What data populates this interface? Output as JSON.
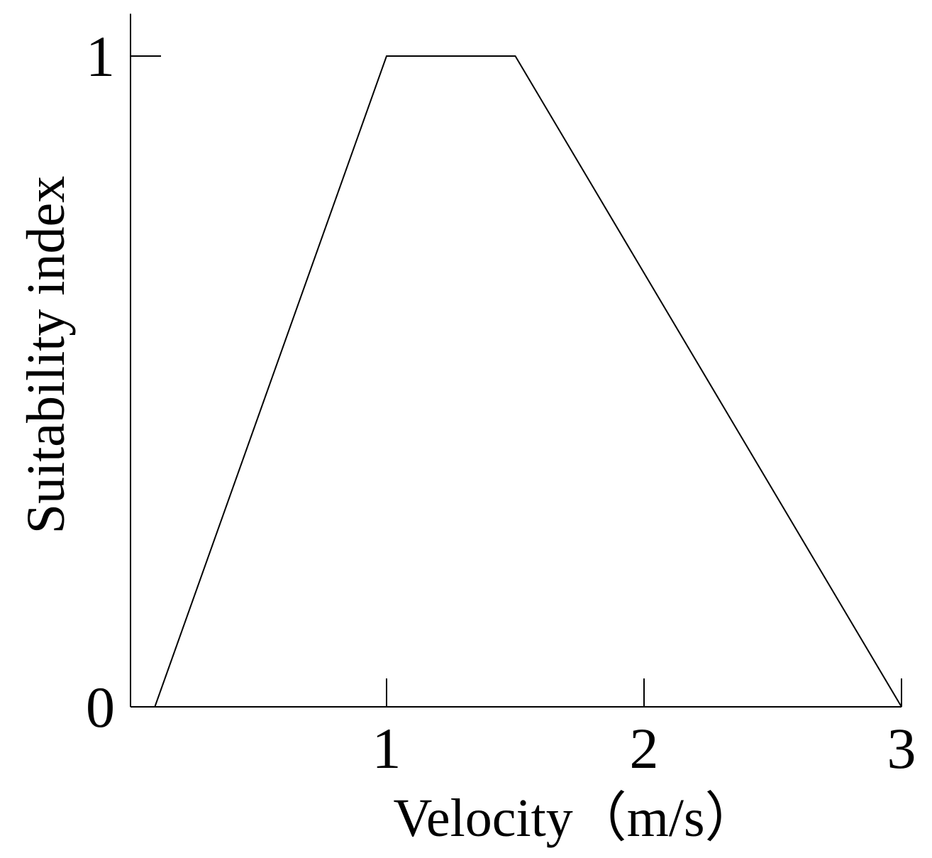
{
  "chart_data": {
    "type": "line",
    "x": [
      0.1,
      1,
      1.5,
      3
    ],
    "values": [
      0,
      1,
      1,
      0
    ],
    "xlim": [
      0,
      3
    ],
    "ylim": [
      0,
      1.065
    ],
    "xticks": [
      1,
      2,
      3
    ],
    "yticks": [
      0,
      1
    ],
    "xlabel": "Velocity（m/s）",
    "ylabel": "Suitability index",
    "color": "#000000",
    "grid": false
  }
}
